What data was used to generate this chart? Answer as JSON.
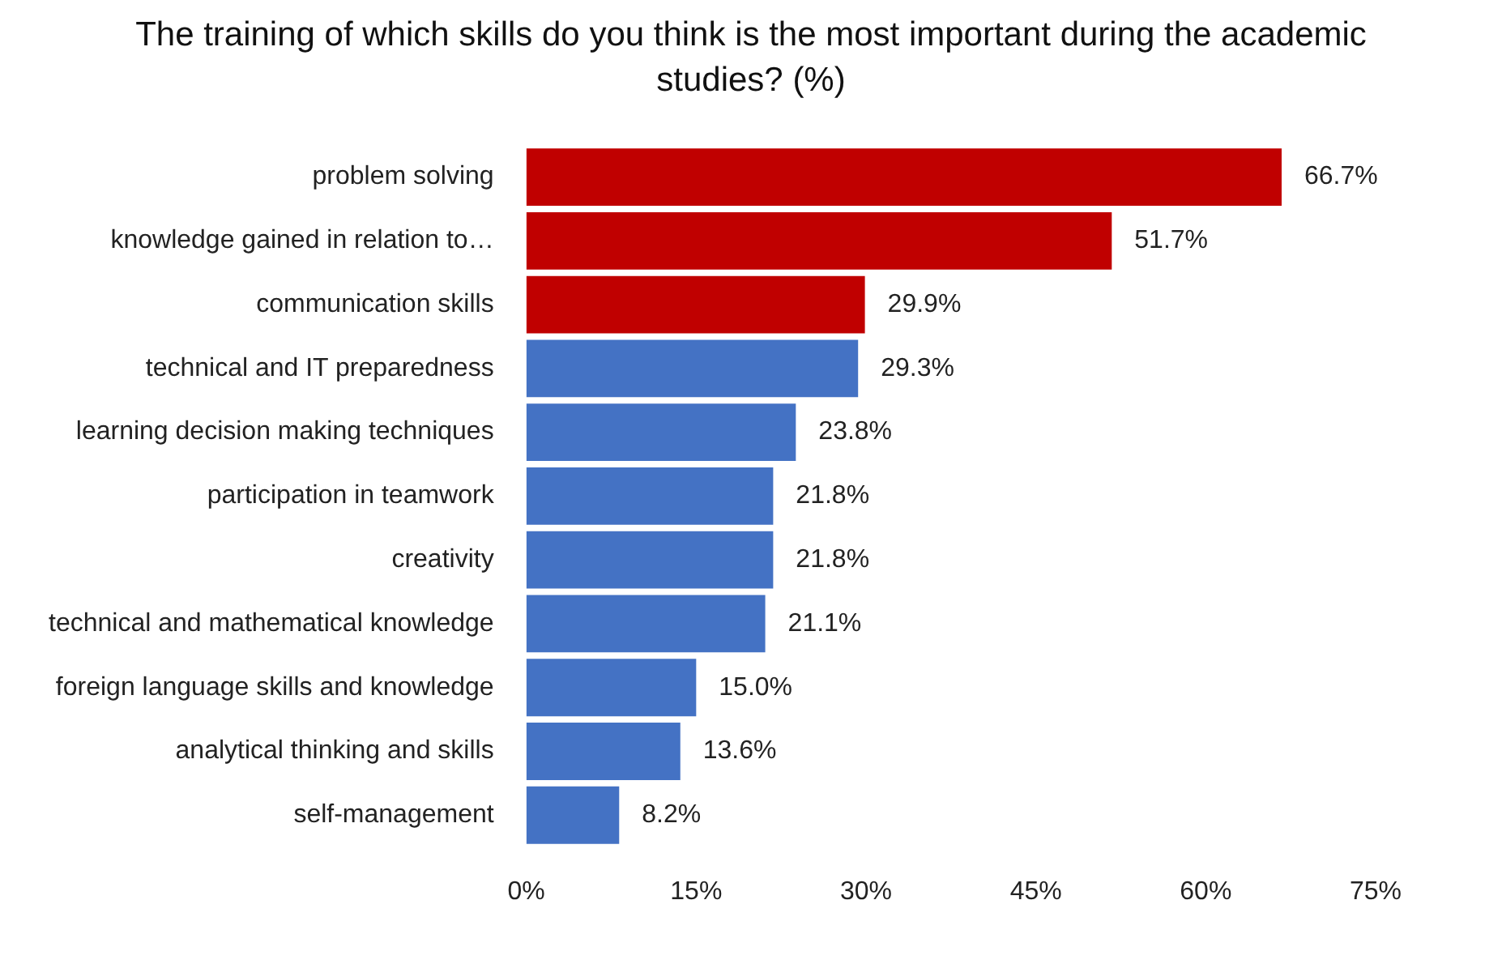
{
  "chart_data": {
    "type": "bar",
    "orientation": "horizontal",
    "title": "The training of which skills do you think is the most important during the academic studies? (%)",
    "categories": [
      "problem solving",
      "knowledge gained in relation to…",
      "communication skills",
      "technical and IT preparedness",
      "learning decision making techniques",
      "participation in teamwork",
      "creativity",
      "technical and mathematical knowledge",
      "foreign language skills and knowledge",
      "analytical thinking and skills",
      "self-management"
    ],
    "values": [
      66.7,
      51.7,
      29.9,
      29.3,
      23.8,
      21.8,
      21.8,
      21.1,
      15.0,
      13.6,
      8.2
    ],
    "value_labels": [
      "66.7%",
      "51.7%",
      "29.9%",
      "29.3%",
      "23.8%",
      "21.8%",
      "21.8%",
      "21.1%",
      "15.0%",
      "13.6%",
      "8.2%"
    ],
    "colors": [
      "#c00000",
      "#c00000",
      "#c00000",
      "#4472c4",
      "#4472c4",
      "#4472c4",
      "#4472c4",
      "#4472c4",
      "#4472c4",
      "#4472c4",
      "#4472c4"
    ],
    "xlim": [
      0,
      75
    ],
    "xticks": [
      {
        "value": 0,
        "label": "0%"
      },
      {
        "value": 15,
        "label": "15%"
      },
      {
        "value": 30,
        "label": "30%"
      },
      {
        "value": 45,
        "label": "45%"
      },
      {
        "value": 60,
        "label": "60%"
      },
      {
        "value": 75,
        "label": "75%"
      }
    ],
    "grid": false,
    "legend": false
  }
}
